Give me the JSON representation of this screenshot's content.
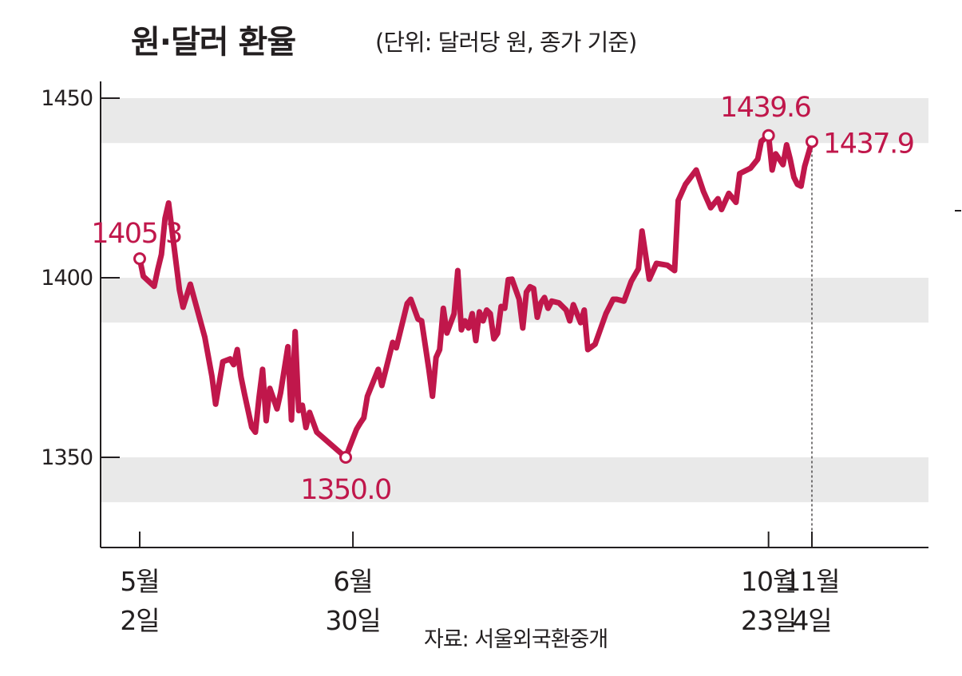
{
  "colors": {
    "line": "#c0174b",
    "band": "#e9e9e9",
    "axis": "#231f20"
  },
  "chart_data": {
    "type": "line",
    "title": "원·달러 환율",
    "subtitle": "(단위: 달러당 원, 종가 기준)",
    "source": "자료: 서울외국환중개",
    "ylim": [
      1325,
      1462
    ],
    "yticks": [
      1350,
      1400,
      1450
    ],
    "ytick_labels": [
      "1350",
      "1400",
      "1450"
    ],
    "xticks": [
      {
        "date": "2024-05-02",
        "lines": [
          "5월",
          "2일"
        ]
      },
      {
        "date": "2024-06-30",
        "lines": [
          "6월",
          "30일"
        ]
      },
      {
        "date": "2024-10-23",
        "lines": [
          "10월",
          "23일"
        ]
      },
      {
        "date": "2024-11-04",
        "lines": [
          "11월",
          "4일"
        ]
      }
    ],
    "annotations": [
      {
        "label": "1405.3",
        "date": "2024-05-02",
        "value": 1405.3
      },
      {
        "label": "1350.0",
        "date": "2024-06-28",
        "value": 1350.0
      },
      {
        "label": "1439.6",
        "date": "2024-10-23",
        "value": 1439.6
      },
      {
        "label": "1437.9",
        "date": "2024-11-04",
        "value": 1437.9
      }
    ],
    "series": [
      {
        "values": [
          [
            "2024-05-02",
            1405.3
          ],
          [
            "2024-05-03",
            1400.4
          ],
          [
            "2024-05-06",
            1397.6
          ],
          [
            "2024-05-07",
            1402.3
          ],
          [
            "2024-05-08",
            1406.5
          ],
          [
            "2024-05-09",
            1416.5
          ],
          [
            "2024-05-10",
            1420.8
          ],
          [
            "2024-05-13",
            1396.6
          ],
          [
            "2024-05-14",
            1391.8
          ],
          [
            "2024-05-16",
            1398.2
          ],
          [
            "2024-05-20",
            1383.5
          ],
          [
            "2024-05-22",
            1372.5
          ],
          [
            "2024-05-23",
            1364.8
          ],
          [
            "2024-05-25",
            1376.6
          ],
          [
            "2024-05-27",
            1377.4
          ],
          [
            "2024-05-28",
            1375.8
          ],
          [
            "2024-05-29",
            1380.0
          ],
          [
            "2024-05-30",
            1372.5
          ],
          [
            "2024-05-31",
            1367.6
          ],
          [
            "2024-06-02",
            1358.4
          ],
          [
            "2024-06-03",
            1357.0
          ],
          [
            "2024-06-04",
            1366.5
          ],
          [
            "2024-06-05",
            1374.5
          ],
          [
            "2024-06-06",
            1360.2
          ],
          [
            "2024-06-07",
            1369.2
          ],
          [
            "2024-06-09",
            1363.5
          ],
          [
            "2024-06-10",
            1368.0
          ],
          [
            "2024-06-12",
            1380.8
          ],
          [
            "2024-06-13",
            1360.4
          ],
          [
            "2024-06-14",
            1385.0
          ],
          [
            "2024-06-15",
            1363.0
          ],
          [
            "2024-06-16",
            1364.5
          ],
          [
            "2024-06-17",
            1358.3
          ],
          [
            "2024-06-18",
            1362.5
          ],
          [
            "2024-06-20",
            1357.0
          ],
          [
            "2024-06-24",
            1353.5
          ],
          [
            "2024-06-28",
            1350.0
          ],
          [
            "2024-07-01",
            1357.8
          ],
          [
            "2024-07-02",
            1359.5
          ],
          [
            "2024-07-03",
            1361.0
          ],
          [
            "2024-07-04",
            1367.0
          ],
          [
            "2024-07-05",
            1369.5
          ],
          [
            "2024-07-07",
            1374.5
          ],
          [
            "2024-07-08",
            1370.0
          ],
          [
            "2024-07-10",
            1378.0
          ],
          [
            "2024-07-11",
            1382.0
          ],
          [
            "2024-07-12",
            1380.5
          ],
          [
            "2024-07-15",
            1392.8
          ],
          [
            "2024-07-16",
            1394.0
          ],
          [
            "2024-07-18",
            1388.5
          ],
          [
            "2024-07-19",
            1388.0
          ],
          [
            "2024-07-21",
            1374.5
          ],
          [
            "2024-07-22",
            1367.0
          ],
          [
            "2024-07-23",
            1377.8
          ],
          [
            "2024-07-24",
            1380.0
          ],
          [
            "2024-07-25",
            1391.5
          ],
          [
            "2024-07-26",
            1384.6
          ],
          [
            "2024-07-28",
            1390.0
          ],
          [
            "2024-07-29",
            1402.0
          ],
          [
            "2024-07-30",
            1385.5
          ],
          [
            "2024-07-31",
            1388.0
          ],
          [
            "2024-08-01",
            1386.0
          ],
          [
            "2024-08-02",
            1390.0
          ],
          [
            "2024-08-03",
            1382.5
          ],
          [
            "2024-08-04",
            1390.5
          ],
          [
            "2024-08-05",
            1388.0
          ],
          [
            "2024-08-06",
            1391.0
          ],
          [
            "2024-08-07",
            1390.0
          ],
          [
            "2024-08-08",
            1383.0
          ],
          [
            "2024-08-09",
            1384.5
          ],
          [
            "2024-08-10",
            1392.0
          ],
          [
            "2024-08-11",
            1391.5
          ],
          [
            "2024-08-12",
            1399.5
          ],
          [
            "2024-08-13",
            1399.6
          ],
          [
            "2024-08-15",
            1394.0
          ],
          [
            "2024-08-16",
            1386.0
          ],
          [
            "2024-08-17",
            1396.0
          ],
          [
            "2024-08-18",
            1397.5
          ],
          [
            "2024-08-19",
            1397.0
          ],
          [
            "2024-08-20",
            1389.0
          ],
          [
            "2024-08-21",
            1393.0
          ],
          [
            "2024-08-22",
            1394.5
          ],
          [
            "2024-08-23",
            1391.5
          ],
          [
            "2024-08-24",
            1393.5
          ],
          [
            "2024-08-26",
            1393.0
          ],
          [
            "2024-08-28",
            1391.0
          ],
          [
            "2024-08-29",
            1388.0
          ],
          [
            "2024-08-30",
            1392.5
          ],
          [
            "2024-09-01",
            1387.5
          ],
          [
            "2024-09-02",
            1391.0
          ],
          [
            "2024-09-03",
            1380.0
          ],
          [
            "2024-09-05",
            1381.5
          ],
          [
            "2024-09-08",
            1390.0
          ],
          [
            "2024-09-10",
            1394.0
          ],
          [
            "2024-09-11",
            1394.0
          ],
          [
            "2024-09-13",
            1393.5
          ],
          [
            "2024-09-15",
            1399.0
          ],
          [
            "2024-09-17",
            1402.5
          ],
          [
            "2024-09-18",
            1413.0
          ],
          [
            "2024-09-20",
            1399.6
          ],
          [
            "2024-09-22",
            1404.0
          ],
          [
            "2024-09-25",
            1403.5
          ],
          [
            "2024-09-27",
            1402.0
          ],
          [
            "2024-09-28",
            1421.5
          ],
          [
            "2024-09-30",
            1426.0
          ],
          [
            "2024-10-03",
            1430.0
          ],
          [
            "2024-10-05",
            1424.0
          ],
          [
            "2024-10-07",
            1419.5
          ],
          [
            "2024-10-09",
            1422.0
          ],
          [
            "2024-10-10",
            1419.0
          ],
          [
            "2024-10-12",
            1423.5
          ],
          [
            "2024-10-14",
            1421.0
          ],
          [
            "2024-10-15",
            1429.0
          ],
          [
            "2024-10-18",
            1430.5
          ],
          [
            "2024-10-20",
            1433.0
          ],
          [
            "2024-10-21",
            1438.0
          ],
          [
            "2024-10-23",
            1439.6
          ],
          [
            "2024-10-24",
            1430.0
          ],
          [
            "2024-10-25",
            1434.5
          ],
          [
            "2024-10-27",
            1431.5
          ],
          [
            "2024-10-28",
            1437.0
          ],
          [
            "2024-10-29",
            1433.0
          ],
          [
            "2024-10-30",
            1428.0
          ],
          [
            "2024-10-31",
            1426.0
          ],
          [
            "2024-11-01",
            1425.5
          ],
          [
            "2024-11-02",
            1431.0
          ],
          [
            "2024-11-04",
            1437.9
          ]
        ]
      }
    ]
  }
}
